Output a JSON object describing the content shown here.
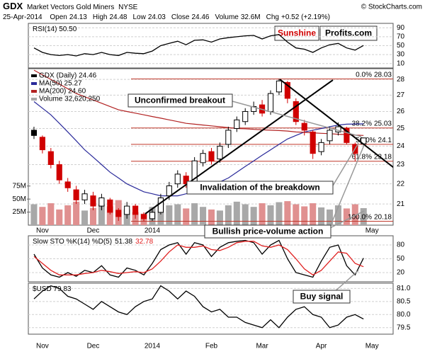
{
  "header": {
    "symbol": "GDX",
    "name": "Market Vectors Gold Miners",
    "exchange": "NYSE",
    "source": "© StockCharts.com",
    "date": "25-Apr-2014",
    "quote": [
      {
        "label": "Open",
        "value": 24.13
      },
      {
        "label": "High",
        "value": 24.48
      },
      {
        "label": "Low",
        "value": 24.03
      },
      {
        "label": "Close",
        "value": 24.46
      },
      {
        "label": "Volume",
        "value": "32.6M"
      },
      {
        "label": "Chg",
        "value": "+0.52 (+2.19%)"
      }
    ]
  },
  "logo": {
    "part1": "Sunshine",
    "part2": "Profits.com"
  },
  "annotations": [
    "Unconfirmed breakout",
    "Invalidation of the breakdown",
    "Bullish price-volume action",
    "Buy signal"
  ],
  "chart_data": [
    {
      "type": "line",
      "title": "RSI(14) 50.50",
      "color": "#000000",
      "values": [
        45,
        35,
        30,
        28,
        30,
        27,
        32,
        30,
        35,
        30,
        28,
        35,
        33,
        32,
        38,
        50,
        55,
        60,
        52,
        62,
        63,
        58,
        65,
        68,
        70,
        72,
        73,
        65,
        72,
        75,
        58,
        45,
        42,
        35,
        45,
        52,
        55,
        45,
        40,
        50.5,
        null,
        null,
        null
      ],
      "ylim": [
        0,
        100
      ],
      "yticks": [
        10,
        30,
        50,
        70,
        90
      ],
      "grid": true
    },
    {
      "type": "candlestick",
      "name": "GDX (Daily) 24.46",
      "up_color": "#000000",
      "down_color": "#d00000",
      "log": true,
      "categories": [
        null,
        "Nov",
        null,
        null,
        null,
        null,
        null,
        "Dec",
        null,
        null,
        null,
        null,
        null,
        null,
        "2014",
        null,
        null,
        null,
        null,
        null,
        null,
        "Feb",
        null,
        null,
        null,
        null,
        null,
        "Mar",
        null,
        null,
        null,
        null,
        null,
        null,
        "Apr",
        null,
        null,
        null,
        null,
        null,
        "May",
        null,
        null
      ],
      "open": [
        24.9,
        24.5,
        23.7,
        23.0,
        22.1,
        21.7,
        21.2,
        21.4,
        20.9,
        21.2,
        20.7,
        20.5,
        20.9,
        20.5,
        20.3,
        20.6,
        21.4,
        22.0,
        22.4,
        22.1,
        23.1,
        23.7,
        23.3,
        24.1,
        25.0,
        25.4,
        26.0,
        26.4,
        26.0,
        27.2,
        27.8,
        26.6,
        25.3,
        24.8,
        23.7,
        24.3,
        24.8,
        25.0,
        24.1,
        24.13,
        null,
        null,
        null
      ],
      "high": [
        25.1,
        24.6,
        23.9,
        23.2,
        22.3,
        21.9,
        21.7,
        21.6,
        21.5,
        21.3,
        20.8,
        21.1,
        21.0,
        20.6,
        20.8,
        21.5,
        22.1,
        22.7,
        22.6,
        23.4,
        23.8,
        23.9,
        24.2,
        25.1,
        25.7,
        26.2,
        26.6,
        26.7,
        27.3,
        28.03,
        27.9,
        26.8,
        25.5,
        24.9,
        24.4,
        25.1,
        25.35,
        25.1,
        24.2,
        24.48,
        null,
        null,
        null
      ],
      "low": [
        24.4,
        23.6,
        22.8,
        22.0,
        21.6,
        21.0,
        21.0,
        20.7,
        20.7,
        20.5,
        20.2,
        20.3,
        20.3,
        20.18,
        20.2,
        20.5,
        21.2,
        21.8,
        21.8,
        21.9,
        22.9,
        23.0,
        23.1,
        23.9,
        24.8,
        25.2,
        25.8,
        25.7,
        25.8,
        27.0,
        26.5,
        25.2,
        24.6,
        23.3,
        23.5,
        24.1,
        24.6,
        24.1,
        23.18,
        24.03,
        null,
        null,
        null
      ],
      "close": [
        24.6,
        23.8,
        23.0,
        22.2,
        21.8,
        21.2,
        21.5,
        20.9,
        21.3,
        20.6,
        20.4,
        20.9,
        20.5,
        20.3,
        20.6,
        21.3,
        21.9,
        22.5,
        22.0,
        23.2,
        23.6,
        23.2,
        24.0,
        24.9,
        25.5,
        26.0,
        26.3,
        25.9,
        27.1,
        27.9,
        26.8,
        25.4,
        24.9,
        23.6,
        24.2,
        24.9,
        25.1,
        24.2,
        23.6,
        24.46,
        null,
        null,
        null
      ],
      "ylim": [
        20,
        28.7
      ],
      "yticks": [
        21,
        22,
        23,
        24,
        25,
        26,
        27,
        28
      ],
      "grid": true,
      "overlays": [
        {
          "name": "MA(50) 25.27",
          "color": "#2a2a9a",
          "values": [
            26.6,
            26.2,
            25.8,
            25.3,
            24.8,
            24.3,
            23.8,
            23.4,
            23.0,
            22.6,
            22.3,
            22.0,
            21.8,
            21.6,
            21.5,
            21.4,
            21.4,
            21.4,
            21.5,
            21.6,
            21.7,
            21.9,
            22.1,
            22.3,
            22.6,
            22.9,
            23.2,
            23.5,
            23.8,
            24.1,
            24.4,
            24.6,
            24.8,
            24.9,
            25.0,
            25.1,
            25.2,
            25.25,
            25.26,
            25.27,
            null,
            null,
            null
          ]
        },
        {
          "name": "MA(200) 24.60",
          "color": "#b22222",
          "values": [
            28.6,
            28.3,
            28.0,
            27.7,
            27.4,
            27.1,
            26.9,
            26.7,
            26.5,
            26.3,
            26.1,
            26.0,
            25.9,
            25.8,
            25.7,
            25.6,
            25.5,
            25.4,
            25.3,
            25.25,
            25.2,
            25.15,
            25.1,
            25.05,
            25.0,
            24.98,
            24.95,
            24.92,
            24.9,
            24.88,
            24.85,
            24.8,
            24.78,
            24.75,
            24.72,
            24.7,
            24.67,
            24.65,
            24.62,
            24.6,
            null,
            null,
            null
          ]
        }
      ],
      "volume": {
        "name": "Volume 32,620,250",
        "color": "#a8a8a8",
        "down_color": "#e09090",
        "values": [
          40,
          35,
          42,
          30,
          38,
          45,
          28,
          33,
          40,
          36,
          48,
          30,
          25,
          22,
          35,
          45,
          38,
          40,
          32,
          42,
          35,
          30,
          28,
          38,
          45,
          40,
          35,
          42,
          38,
          44,
          46,
          40,
          36,
          42,
          34,
          30,
          38,
          32,
          40,
          32.6,
          null,
          null,
          null
        ],
        "ylim": [
          0,
          300
        ],
        "yticks": [
          {
            "value": 25,
            "label": "25M"
          },
          {
            "value": 50,
            "label": "50M"
          },
          {
            "value": 75,
            "label": "75M"
          }
        ]
      },
      "fib_levels": [
        {
          "label": "0.0%",
          "value": 28.03
        },
        {
          "label": "38.2%",
          "value": 25.03
        },
        {
          "label": "50.0%",
          "value": 24.1
        },
        {
          "label": "61.8%",
          "value": 23.18
        },
        {
          "label": "100.0%",
          "value": 20.18
        }
      ],
      "fib_color": "#c0392b"
    },
    {
      "type": "line",
      "title": "Slow STO %K(14) %D(5)",
      "series": [
        {
          "name": "51.38",
          "color": "#000000",
          "values": [
            60,
            30,
            15,
            10,
            20,
            12,
            25,
            20,
            35,
            15,
            10,
            30,
            25,
            15,
            40,
            70,
            80,
            85,
            60,
            85,
            80,
            55,
            75,
            85,
            88,
            90,
            85,
            60,
            80,
            90,
            50,
            20,
            15,
            10,
            45,
            75,
            80,
            35,
            15,
            51.38,
            null,
            null,
            null
          ]
        },
        {
          "name": "32.78",
          "color": "#e02020",
          "values": [
            55,
            40,
            25,
            15,
            15,
            15,
            18,
            20,
            25,
            22,
            18,
            20,
            22,
            20,
            28,
            45,
            65,
            80,
            75,
            75,
            78,
            70,
            68,
            75,
            85,
            88,
            88,
            78,
            75,
            80,
            70,
            50,
            28,
            15,
            25,
            45,
            65,
            62,
            40,
            32.78,
            null,
            null,
            null
          ]
        }
      ],
      "ylim": [
        0,
        100
      ],
      "yticks": [
        20,
        50,
        80
      ],
      "grid": true
    },
    {
      "type": "line",
      "title": "$USD 79.83",
      "color": "#000000",
      "categories": [
        null,
        "Nov",
        null,
        null,
        null,
        null,
        null,
        "Dec",
        null,
        null,
        null,
        null,
        null,
        null,
        "2014",
        null,
        null,
        null,
        null,
        null,
        null,
        "Feb",
        null,
        null,
        null,
        null,
        null,
        "Mar",
        null,
        null,
        null,
        null,
        null,
        null,
        "Apr",
        null,
        null,
        null,
        null,
        null,
        "May",
        null,
        null
      ],
      "values": [
        80.6,
        80.9,
        81.1,
        81.0,
        80.7,
        80.6,
        80.4,
        80.2,
        80.5,
        80.3,
        80.1,
        80.0,
        80.3,
        80.5,
        80.6,
        81.1,
        80.9,
        80.6,
        80.9,
        80.7,
        80.3,
        80.1,
        80.2,
        79.9,
        79.9,
        79.7,
        79.6,
        79.5,
        79.8,
        79.5,
        79.9,
        80.2,
        80.3,
        80.0,
        79.9,
        79.5,
        79.6,
        79.9,
        80.0,
        79.83,
        null,
        null,
        null
      ],
      "ylim": [
        79.25,
        81.2
      ],
      "yticks": [
        {
          "value": 79.5,
          "label": "79.5"
        },
        {
          "value": 80,
          "label": "80.0"
        },
        {
          "value": 80.5,
          "label": "80.5"
        },
        {
          "value": 81,
          "label": "81.0"
        }
      ],
      "grid": true
    }
  ]
}
